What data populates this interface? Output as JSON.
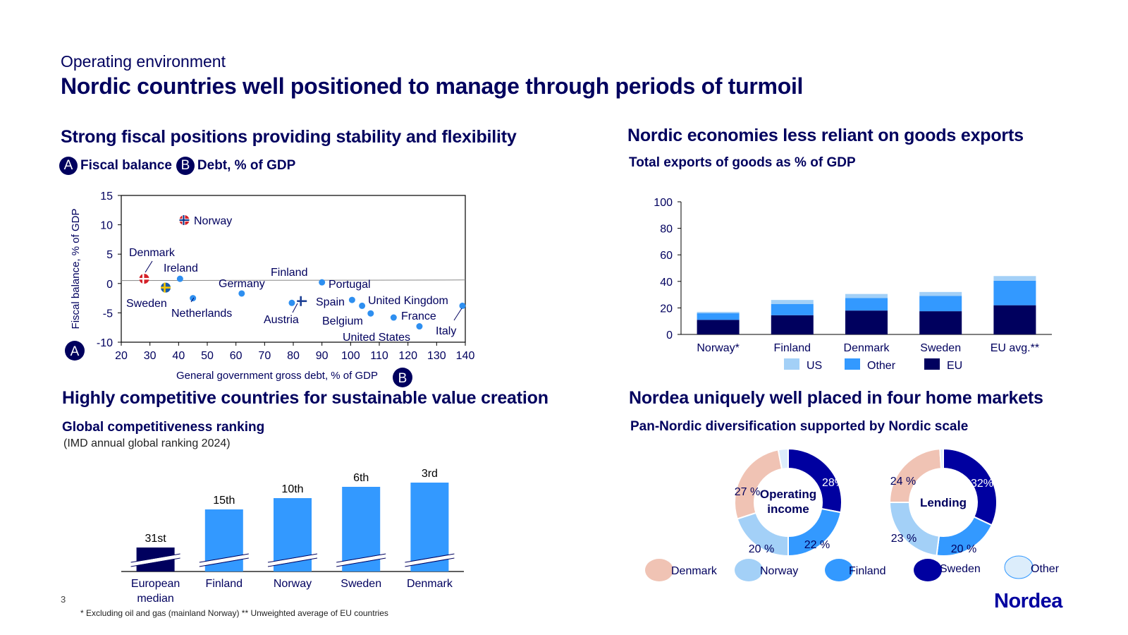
{
  "header": {
    "kicker": "Operating environment",
    "title": "Nordic countries well positioned to manage through periods of turmoil"
  },
  "panels": {
    "fiscal": {
      "title": "Strong fiscal positions providing stability and flexibility",
      "badge_a": "A",
      "label_a": "Fiscal balance",
      "badge_b": "B",
      "label_b": "Debt, % of GDP"
    },
    "exports": {
      "title": "Nordic economies less reliant on goods exports",
      "subtitle": "Total exports of goods as % of GDP"
    },
    "competitive": {
      "title": "Highly competitive countries for sustainable value creation",
      "subtitle": "Global competitiveness ranking",
      "note": "(IMD annual global ranking 2024)"
    },
    "nordea": {
      "title": "Nordea uniquely well placed in four home markets",
      "subtitle": "Pan-Nordic diversification supported by Nordic scale"
    }
  },
  "chart_data": [
    {
      "type": "scatter",
      "xlabel": "General government gross debt, % of GDP",
      "ylabel": "Fiscal balance, % of GDP",
      "xlim": [
        20,
        140
      ],
      "ylim": [
        -10,
        15
      ],
      "xticks": [
        20,
        30,
        40,
        50,
        60,
        70,
        80,
        90,
        100,
        110,
        120,
        130,
        140
      ],
      "yticks": [
        -10,
        -5,
        0,
        5,
        10,
        15
      ],
      "axis_badge_y": "A",
      "axis_badge_x": "B",
      "trendline": [
        [
          20,
          0.5
        ],
        [
          140,
          0.6
        ]
      ],
      "points": [
        {
          "label": "Norway",
          "x": 42,
          "y": 10.8,
          "marker": "flag-norway"
        },
        {
          "label": "Denmark",
          "x": 28,
          "y": 0.8,
          "marker": "flag-denmark"
        },
        {
          "label": "Ireland",
          "x": 40.5,
          "y": 0.8,
          "marker": "dot"
        },
        {
          "label": "Sweden",
          "x": 35.5,
          "y": -0.7,
          "marker": "flag-sweden"
        },
        {
          "label": "Netherlands",
          "x": 45,
          "y": -2.5,
          "marker": "dot"
        },
        {
          "label": "Germany",
          "x": 62,
          "y": -1.7,
          "marker": "dot"
        },
        {
          "label": "Finland",
          "x": 83,
          "y": -3.0,
          "marker": "flag-finland"
        },
        {
          "label": "Austria",
          "x": 79.5,
          "y": -3.3,
          "marker": "dot"
        },
        {
          "label": "Portugal",
          "x": 90,
          "y": 0.2,
          "marker": "dot"
        },
        {
          "label": "Spain",
          "x": 100.5,
          "y": -2.8,
          "marker": "dot"
        },
        {
          "label": "United Kingdom",
          "x": 104,
          "y": -3.8,
          "marker": "dot"
        },
        {
          "label": "Belgium",
          "x": 107,
          "y": -5.1,
          "marker": "dot"
        },
        {
          "label": "France",
          "x": 115,
          "y": -5.8,
          "marker": "dot"
        },
        {
          "label": "United States",
          "x": 124,
          "y": -7.3,
          "marker": "dot"
        },
        {
          "label": "Italy",
          "x": 139,
          "y": -3.8,
          "marker": "dot"
        }
      ]
    },
    {
      "type": "bar",
      "stacked": true,
      "categories": [
        "Norway*",
        "Finland",
        "Denmark",
        "Sweden",
        "EU avg.**"
      ],
      "ylim": [
        0,
        100
      ],
      "yticks": [
        0,
        20,
        40,
        60,
        80,
        100
      ],
      "series": [
        {
          "name": "EU",
          "color": "#00005e",
          "values": [
            11,
            14.5,
            18,
            17.5,
            22
          ]
        },
        {
          "name": "Other",
          "color": "#3399ff",
          "values": [
            5,
            8.5,
            9.5,
            11.5,
            18.5
          ]
        },
        {
          "name": "US",
          "color": "#a3d0f7",
          "values": [
            1,
            3,
            3,
            3,
            3.5
          ]
        }
      ],
      "legend": [
        "US",
        "Other",
        "EU"
      ],
      "legend_position": "bottom"
    },
    {
      "type": "bar",
      "categories": [
        "European median",
        "Finland",
        "Norway",
        "Sweden",
        "Denmark"
      ],
      "value_labels": [
        "31st",
        "15th",
        "10th",
        "6th",
        "3rd"
      ],
      "values": [
        31,
        15,
        10,
        6,
        3
      ],
      "colors": [
        "#00005e",
        "#3399ff",
        "#3399ff",
        "#3399ff",
        "#3399ff"
      ],
      "axis_break": true
    },
    {
      "type": "pie",
      "donut": true,
      "center_label": "Operating income",
      "slices": [
        {
          "name": "Sweden",
          "value": 28,
          "label": "28%",
          "color": "#0000a0"
        },
        {
          "name": "Finland",
          "value": 22,
          "label": "22 %",
          "color": "#3399ff"
        },
        {
          "name": "Norway",
          "value": 20,
          "label": "20 %",
          "color": "#a3d0f7"
        },
        {
          "name": "Denmark",
          "value": 27,
          "label": "27 %",
          "color": "#f0c3b4"
        },
        {
          "name": "Other",
          "value": 3,
          "label": "",
          "color": "#dcedfb"
        }
      ]
    },
    {
      "type": "pie",
      "donut": true,
      "center_label": "Lending",
      "slices": [
        {
          "name": "Sweden",
          "value": 32,
          "label": "32%",
          "color": "#0000a0"
        },
        {
          "name": "Finland",
          "value": 20,
          "label": "20 %",
          "color": "#3399ff"
        },
        {
          "name": "Norway",
          "value": 23,
          "label": "23 %",
          "color": "#a3d0f7"
        },
        {
          "name": "Denmark",
          "value": 24,
          "label": "24 %",
          "color": "#f0c3b4"
        },
        {
          "name": "Other",
          "value": 1,
          "label": "",
          "color": "#dcedfb"
        }
      ]
    }
  ],
  "donut_legend": [
    {
      "name": "Denmark",
      "color": "#f0c3b4"
    },
    {
      "name": "Norway",
      "color": "#a3d0f7"
    },
    {
      "name": "Finland",
      "color": "#3399ff"
    },
    {
      "name": "Sweden",
      "color": "#0000a0"
    },
    {
      "name": "Other",
      "color": "#dcedfb"
    }
  ],
  "footer": {
    "page_number": "3",
    "footnote": "* Excluding oil and gas (mainland Norway) ** Unweighted average of EU countries",
    "logo": "Nordea"
  }
}
